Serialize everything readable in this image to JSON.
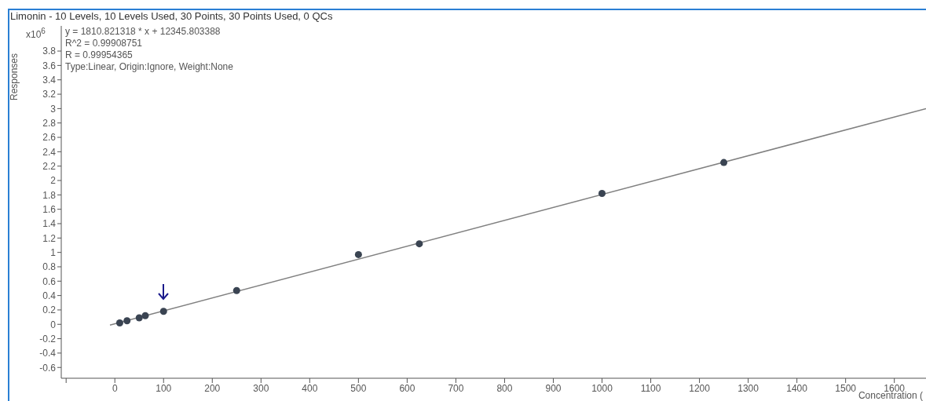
{
  "chart_data": {
    "type": "scatter",
    "title": "Limonin - 10 Levels, 10 Levels Used, 30 Points, 30 Points Used, 0 QCs",
    "xlabel": "Concentration (",
    "ylabel": "Responses",
    "annotations": [
      "x10$^{6}$",
      "y = 1810.821318 * x  + 12345.803388",
      "R^2 = 0.99908751",
      "R = 0.99954365",
      "Type:Linear, Origin:Ignore, Weight:None"
    ],
    "marker": "circle",
    "series": [
      {
        "color": "#3a4452",
        "x": [
          10,
          25,
          50,
          62.5,
          100,
          250,
          500,
          625,
          1000,
          1250
        ],
        "values": [
          0.02,
          0.05,
          0.09,
          0.12,
          0.18,
          0.47,
          0.97,
          1.12,
          1.82,
          2.25
        ]
      },
      {
        "type": "line",
        "marker": "none",
        "color": "#808080",
        "x": [
          -10,
          1665
        ],
        "values": [
          -0.01,
          3.0
        ]
      }
    ],
    "xlim": [
      -110,
      1665
    ],
    "xticks": [
      {
        "value": -100,
        "label": null
      },
      0,
      100,
      200,
      300,
      400,
      500,
      600,
      700,
      800,
      900,
      1000,
      1100,
      1200,
      1300,
      1400,
      1500,
      1600
    ],
    "ylim": [
      -0.75,
      4.15
    ],
    "yticks": [
      -0.6,
      -0.4,
      -0.2,
      0,
      0.2,
      0.4,
      0.6,
      0.8,
      1,
      1.2,
      1.4,
      1.6,
      1.8,
      2,
      2.2,
      2.4,
      2.6,
      2.8,
      3,
      3.2,
      3.4,
      3.6,
      3.8
    ]
  }
}
